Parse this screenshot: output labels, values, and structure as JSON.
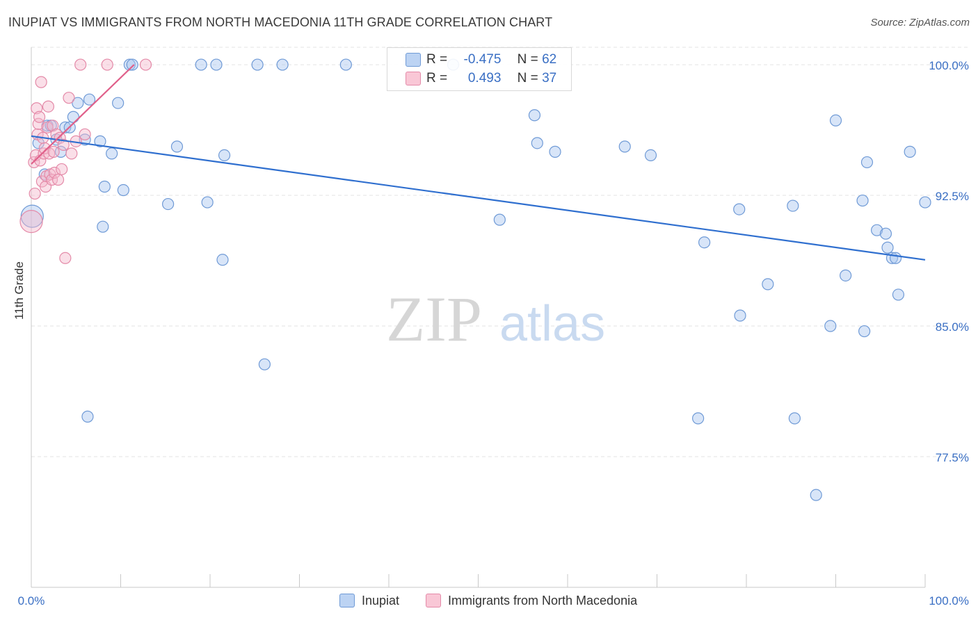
{
  "title": "INUPIAT VS IMMIGRANTS FROM NORTH MACEDONIA 11TH GRADE CORRELATION CHART",
  "source": "Source: ZipAtlas.com",
  "watermark": {
    "zip": "ZIP",
    "atlas": "atlas"
  },
  "legend": {
    "r_label": "R =",
    "n_label": "N =",
    "inupiat": {
      "r": "-0.475",
      "n": "62"
    },
    "macedonia": {
      "r": "0.493",
      "n": "37"
    }
  },
  "colors": {
    "blue_fill": "#a9c6ef",
    "blue_stroke": "#6f9ad6",
    "blue_line": "#2f6fcf",
    "pink_fill": "#f5b8cb",
    "pink_stroke": "#e48aa8",
    "pink_line": "#e0608a",
    "tick_label": "#3a6fc4",
    "grid": "#e3e3e3"
  },
  "chart_data": {
    "type": "scatter",
    "title": "INUPIAT VS IMMIGRANTS FROM NORTH MACEDONIA 11TH GRADE CORRELATION CHART",
    "xlabel": "",
    "ylabel": "11th Grade",
    "xlim": [
      0,
      100
    ],
    "ylim": [
      70,
      101
    ],
    "x_tick_labels": [
      "0.0%",
      "100.0%"
    ],
    "y_ticks": [
      77.5,
      85.0,
      92.5,
      100.0
    ],
    "y_tick_labels": [
      "77.5%",
      "85.0%",
      "92.5%",
      "100.0%"
    ],
    "grid": true,
    "series": [
      {
        "name": "Inupiat",
        "color": "#a9c6ef",
        "trend": {
          "x": [
            0,
            100
          ],
          "y": [
            95.9,
            88.8
          ]
        },
        "points": [
          {
            "x": 0.1,
            "y": 91.3,
            "big": true
          },
          {
            "x": 0.8,
            "y": 95.5
          },
          {
            "x": 1.5,
            "y": 93.7
          },
          {
            "x": 1.8,
            "y": 96.5
          },
          {
            "x": 2.2,
            "y": 96.5
          },
          {
            "x": 2.8,
            "y": 95.7
          },
          {
            "x": 3.3,
            "y": 95.0
          },
          {
            "x": 3.8,
            "y": 96.4
          },
          {
            "x": 4.3,
            "y": 96.4
          },
          {
            "x": 4.7,
            "y": 97.0
          },
          {
            "x": 5.2,
            "y": 97.8
          },
          {
            "x": 6.0,
            "y": 95.7
          },
          {
            "x": 6.5,
            "y": 98.0
          },
          {
            "x": 7.7,
            "y": 95.6
          },
          {
            "x": 8.0,
            "y": 90.7
          },
          {
            "x": 8.2,
            "y": 93.0
          },
          {
            "x": 9.0,
            "y": 94.9
          },
          {
            "x": 9.7,
            "y": 97.8
          },
          {
            "x": 10.3,
            "y": 92.8
          },
          {
            "x": 11.0,
            "y": 100.0
          },
          {
            "x": 11.3,
            "y": 100.0
          },
          {
            "x": 6.3,
            "y": 79.8
          },
          {
            "x": 15.3,
            "y": 92.0
          },
          {
            "x": 16.3,
            "y": 95.3
          },
          {
            "x": 19.0,
            "y": 100.0
          },
          {
            "x": 19.7,
            "y": 92.1
          },
          {
            "x": 20.7,
            "y": 100.0
          },
          {
            "x": 21.4,
            "y": 88.8
          },
          {
            "x": 21.6,
            "y": 94.8
          },
          {
            "x": 25.3,
            "y": 100.0
          },
          {
            "x": 26.1,
            "y": 82.8
          },
          {
            "x": 28.1,
            "y": 100.0
          },
          {
            "x": 35.2,
            "y": 100.0
          },
          {
            "x": 47.2,
            "y": 100.0
          },
          {
            "x": 52.4,
            "y": 91.1
          },
          {
            "x": 56.3,
            "y": 97.1
          },
          {
            "x": 56.6,
            "y": 95.5
          },
          {
            "x": 58.6,
            "y": 95.0
          },
          {
            "x": 66.4,
            "y": 95.3
          },
          {
            "x": 69.3,
            "y": 94.8
          },
          {
            "x": 74.6,
            "y": 79.7
          },
          {
            "x": 75.3,
            "y": 89.8
          },
          {
            "x": 79.2,
            "y": 91.7
          },
          {
            "x": 79.3,
            "y": 85.6
          },
          {
            "x": 82.4,
            "y": 87.4
          },
          {
            "x": 85.2,
            "y": 91.9
          },
          {
            "x": 85.4,
            "y": 79.7
          },
          {
            "x": 87.8,
            "y": 75.3
          },
          {
            "x": 89.4,
            "y": 85.0
          },
          {
            "x": 90.0,
            "y": 96.8
          },
          {
            "x": 91.1,
            "y": 87.9
          },
          {
            "x": 93.0,
            "y": 92.2
          },
          {
            "x": 93.2,
            "y": 84.7
          },
          {
            "x": 93.5,
            "y": 94.4
          },
          {
            "x": 94.6,
            "y": 90.5
          },
          {
            "x": 95.6,
            "y": 90.3
          },
          {
            "x": 95.8,
            "y": 89.5
          },
          {
            "x": 96.3,
            "y": 88.9
          },
          {
            "x": 96.7,
            "y": 88.9
          },
          {
            "x": 97.0,
            "y": 86.8
          },
          {
            "x": 98.3,
            "y": 95.0
          },
          {
            "x": 100.0,
            "y": 92.1
          }
        ]
      },
      {
        "name": "Immigrants from North Macedonia",
        "color": "#f5b8cb",
        "trend": {
          "x": [
            0,
            11.5
          ],
          "y": [
            94.3,
            100.0
          ]
        },
        "points": [
          {
            "x": 0.0,
            "y": 91.0,
            "big": true
          },
          {
            "x": 0.3,
            "y": 94.4
          },
          {
            "x": 0.4,
            "y": 92.6
          },
          {
            "x": 0.5,
            "y": 94.8
          },
          {
            "x": 0.6,
            "y": 97.5
          },
          {
            "x": 0.7,
            "y": 96.0
          },
          {
            "x": 0.8,
            "y": 96.6
          },
          {
            "x": 0.9,
            "y": 97.0
          },
          {
            "x": 1.0,
            "y": 94.5
          },
          {
            "x": 1.1,
            "y": 99.0
          },
          {
            "x": 1.2,
            "y": 93.3
          },
          {
            "x": 1.3,
            "y": 95.8
          },
          {
            "x": 1.4,
            "y": 94.9
          },
          {
            "x": 1.5,
            "y": 95.2
          },
          {
            "x": 1.6,
            "y": 93.0
          },
          {
            "x": 1.7,
            "y": 93.6
          },
          {
            "x": 1.8,
            "y": 96.4
          },
          {
            "x": 1.9,
            "y": 97.6
          },
          {
            "x": 2.0,
            "y": 94.9
          },
          {
            "x": 2.1,
            "y": 93.7
          },
          {
            "x": 2.3,
            "y": 93.4
          },
          {
            "x": 2.4,
            "y": 96.5
          },
          {
            "x": 2.5,
            "y": 95.0
          },
          {
            "x": 2.6,
            "y": 93.8
          },
          {
            "x": 2.8,
            "y": 96.0
          },
          {
            "x": 3.0,
            "y": 93.4
          },
          {
            "x": 3.2,
            "y": 95.8
          },
          {
            "x": 3.4,
            "y": 94.0
          },
          {
            "x": 3.6,
            "y": 95.4
          },
          {
            "x": 3.8,
            "y": 88.9
          },
          {
            "x": 4.2,
            "y": 98.1
          },
          {
            "x": 4.5,
            "y": 94.9
          },
          {
            "x": 5.0,
            "y": 95.6
          },
          {
            "x": 5.5,
            "y": 100.0
          },
          {
            "x": 6.0,
            "y": 96.0
          },
          {
            "x": 8.5,
            "y": 100.0
          },
          {
            "x": 12.8,
            "y": 100.0
          }
        ]
      }
    ]
  }
}
